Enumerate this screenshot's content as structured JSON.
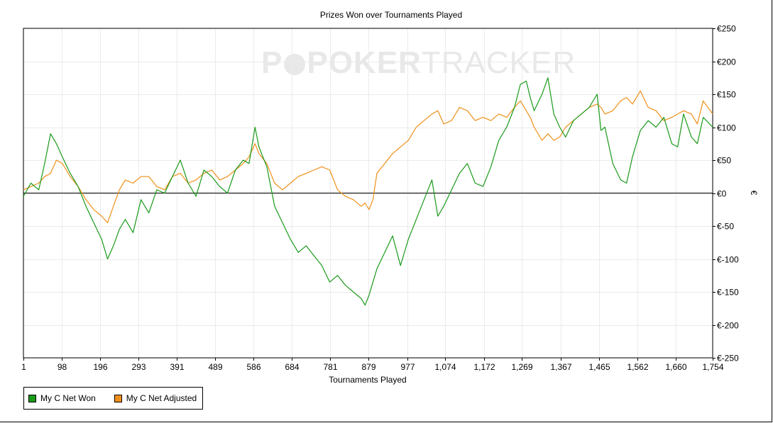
{
  "watermark": {
    "brand_bold": "POKER",
    "brand_thin": "TRACKER"
  },
  "chart_data": {
    "type": "line",
    "title": "Prizes Won over Tournaments Played",
    "xlabel": "Tournaments Played",
    "ylabel": "€",
    "xlim": [
      1,
      1754
    ],
    "ylim": [
      -250,
      250
    ],
    "x_ticks": [
      1,
      98,
      196,
      293,
      391,
      489,
      586,
      684,
      781,
      879,
      977,
      1074,
      1172,
      1269,
      1367,
      1465,
      1562,
      1660,
      1754
    ],
    "x_tick_labels": [
      "1",
      "98",
      "196",
      "293",
      "391",
      "489",
      "586",
      "684",
      "781",
      "879",
      "977",
      "1,074",
      "1,172",
      "1,269",
      "1,367",
      "1,465",
      "1,562",
      "1,660",
      "1,754"
    ],
    "y_ticks": [
      -250,
      -200,
      -150,
      -100,
      -50,
      0,
      50,
      100,
      150,
      200,
      250
    ],
    "y_tick_labels": [
      "€-250",
      "€-200",
      "€-150",
      "€-100",
      "€-50",
      "€0",
      "€50",
      "€100",
      "€150",
      "€200",
      "€250"
    ],
    "grid": true,
    "legend_position": "bottom-left",
    "series": [
      {
        "name": "My C Net Won",
        "color": "#1a9a1a",
        "x": [
          1,
          20,
          40,
          55,
          70,
          85,
          100,
          120,
          140,
          160,
          180,
          200,
          215,
          230,
          245,
          260,
          280,
          300,
          320,
          340,
          360,
          380,
          400,
          420,
          440,
          460,
          480,
          500,
          520,
          540,
          560,
          575,
          590,
          600,
          620,
          640,
          660,
          680,
          700,
          720,
          740,
          760,
          780,
          800,
          820,
          840,
          860,
          870,
          880,
          890,
          900,
          920,
          940,
          960,
          980,
          1000,
          1020,
          1040,
          1055,
          1070,
          1090,
          1110,
          1130,
          1150,
          1170,
          1190,
          1210,
          1230,
          1250,
          1265,
          1280,
          1290,
          1300,
          1320,
          1335,
          1350,
          1365,
          1380,
          1400,
          1420,
          1440,
          1460,
          1470,
          1480,
          1500,
          1520,
          1535,
          1550,
          1570,
          1590,
          1610,
          1630,
          1650,
          1665,
          1680,
          1700,
          1715,
          1730,
          1754
        ],
        "y": [
          -5,
          15,
          5,
          45,
          90,
          75,
          55,
          30,
          10,
          -20,
          -45,
          -70,
          -100,
          -80,
          -55,
          -40,
          -60,
          -10,
          -30,
          5,
          0,
          25,
          50,
          15,
          -5,
          35,
          25,
          10,
          0,
          35,
          50,
          45,
          100,
          70,
          40,
          -20,
          -45,
          -70,
          -90,
          -80,
          -95,
          -110,
          -135,
          -125,
          -140,
          -150,
          -160,
          -170,
          -155,
          -135,
          -115,
          -90,
          -65,
          -110,
          -70,
          -40,
          -10,
          20,
          -35,
          -20,
          5,
          30,
          45,
          15,
          10,
          40,
          80,
          100,
          130,
          165,
          170,
          145,
          125,
          150,
          175,
          120,
          100,
          85,
          110,
          120,
          130,
          150,
          95,
          100,
          45,
          20,
          15,
          55,
          95,
          110,
          100,
          115,
          75,
          70,
          120,
          85,
          75,
          115,
          100
        ]
      },
      {
        "name": "My C Net Adjusted",
        "color": "#f0901a",
        "x": [
          1,
          20,
          40,
          55,
          70,
          85,
          100,
          120,
          140,
          160,
          180,
          200,
          215,
          230,
          245,
          260,
          280,
          300,
          320,
          340,
          360,
          380,
          400,
          420,
          440,
          460,
          480,
          500,
          520,
          540,
          560,
          575,
          590,
          600,
          620,
          640,
          660,
          680,
          700,
          720,
          740,
          760,
          780,
          800,
          820,
          840,
          860,
          870,
          880,
          890,
          900,
          920,
          940,
          960,
          980,
          1000,
          1020,
          1040,
          1055,
          1070,
          1090,
          1110,
          1130,
          1150,
          1170,
          1190,
          1210,
          1230,
          1250,
          1265,
          1280,
          1290,
          1300,
          1320,
          1335,
          1350,
          1365,
          1380,
          1400,
          1420,
          1440,
          1460,
          1470,
          1480,
          1500,
          1520,
          1535,
          1550,
          1570,
          1590,
          1610,
          1630,
          1650,
          1665,
          1680,
          1700,
          1715,
          1730,
          1754
        ],
        "y": [
          5,
          10,
          15,
          25,
          30,
          50,
          45,
          25,
          10,
          -10,
          -25,
          -35,
          -45,
          -20,
          5,
          20,
          15,
          25,
          25,
          10,
          5,
          25,
          30,
          15,
          20,
          30,
          35,
          20,
          25,
          35,
          45,
          55,
          75,
          60,
          45,
          15,
          5,
          15,
          25,
          30,
          35,
          40,
          35,
          5,
          -5,
          -10,
          -20,
          -15,
          -25,
          -10,
          30,
          45,
          60,
          70,
          80,
          100,
          110,
          120,
          125,
          105,
          110,
          130,
          125,
          110,
          115,
          110,
          120,
          115,
          130,
          140,
          125,
          115,
          100,
          80,
          90,
          80,
          85,
          100,
          110,
          120,
          130,
          135,
          130,
          120,
          125,
          140,
          145,
          135,
          155,
          130,
          125,
          110,
          115,
          120,
          125,
          120,
          105,
          140,
          120
        ]
      }
    ]
  }
}
